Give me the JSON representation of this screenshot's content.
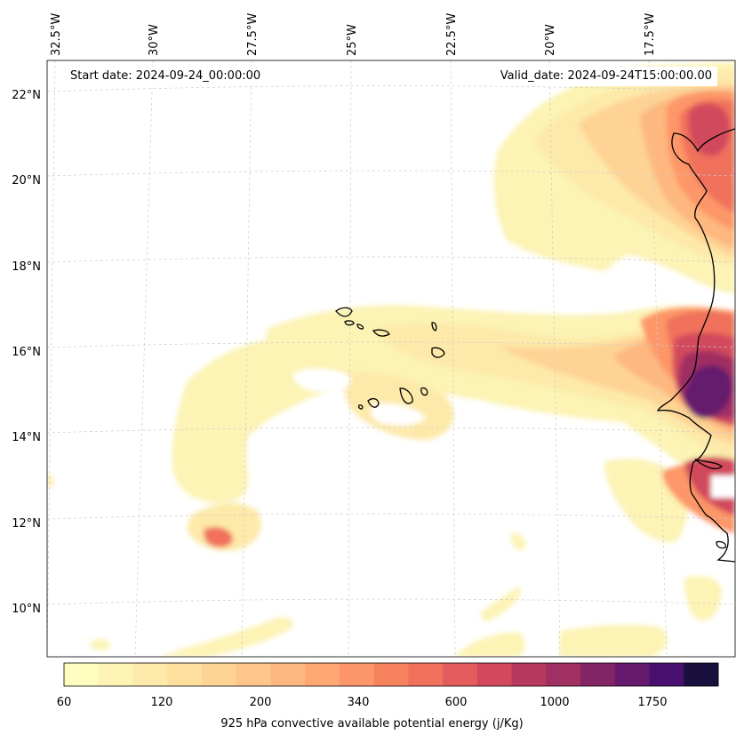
{
  "start_date": "Start date: 2024-09-24_00:00:00",
  "valid_date": "Valid_date: 2024-09-24T15:00:00.00",
  "longitude_labels": [
    "32.5°W",
    "30°W",
    "27.5°W",
    "25°W",
    "22.5°W",
    "20°W",
    "17.5°W"
  ],
  "latitude_labels": [
    "22°N",
    "20°N",
    "18°N",
    "16°N",
    "14°N",
    "12°N",
    "10°N"
  ],
  "colorbar": {
    "title": "925 hPa convective available potential energy (j/Kg)",
    "tick_labels": [
      "60",
      "120",
      "200",
      "340",
      "600",
      "1000",
      "1750"
    ],
    "colors": [
      "#fcfdbf",
      "#fcf3b4",
      "#fde9a9",
      "#fedf9e",
      "#fed394",
      "#fec689",
      "#feb77e",
      "#fea772",
      "#fd9668",
      "#f8845f",
      "#f0715c",
      "#e35d5d",
      "#d1495b",
      "#b8395f",
      "#a02f62",
      "#832466",
      "#651a6d",
      "#4a1070",
      "#180f3d"
    ]
  }
}
